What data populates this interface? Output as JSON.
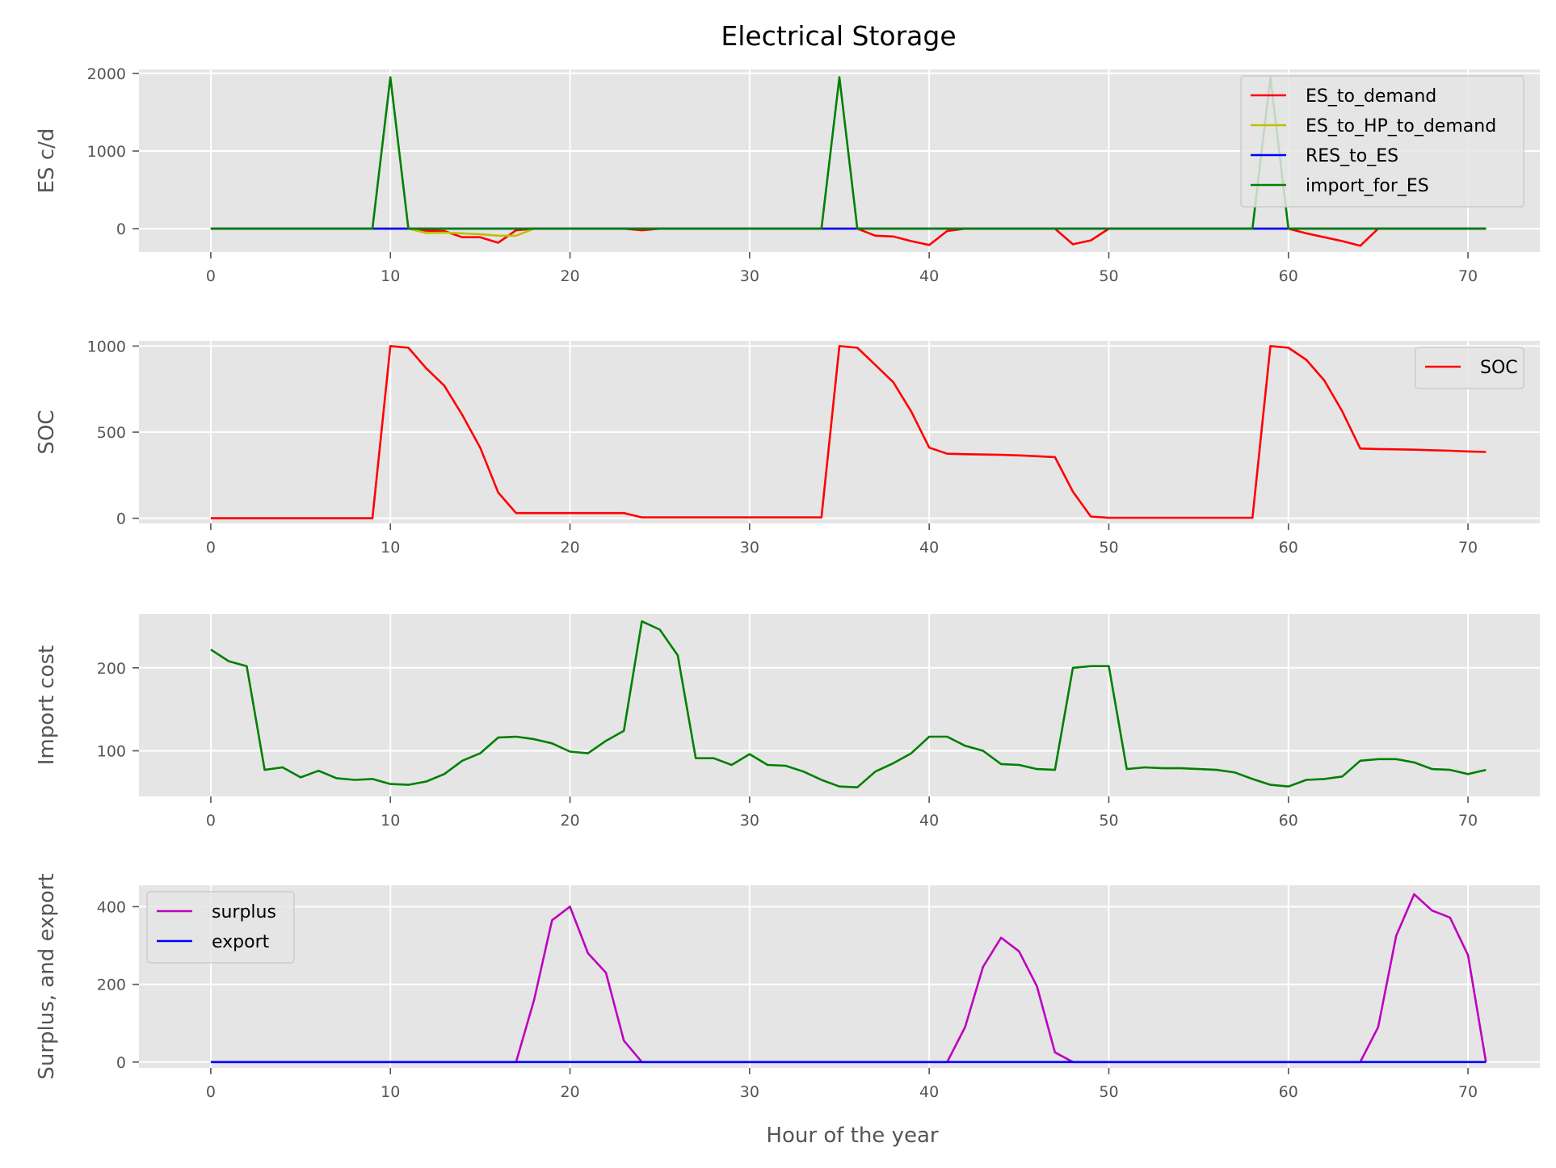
{
  "chart_data": [
    {
      "type": "line",
      "title": "Electrical Storage",
      "xlabel": "",
      "ylabel": "ES c/d",
      "xlim": [
        -4,
        74
      ],
      "ylim": [
        -300,
        2050
      ],
      "xticks": [
        0,
        10,
        20,
        30,
        40,
        50,
        60,
        70
      ],
      "yticks": [
        0,
        1000,
        2000
      ],
      "grid": true,
      "legend": "top-right",
      "series": [
        {
          "name": "ES_to_demand",
          "color": "#ff0000",
          "x_start": 0,
          "values": [
            0,
            0,
            0,
            0,
            0,
            0,
            0,
            0,
            0,
            0,
            0,
            0,
            -25,
            -30,
            -110,
            -110,
            -180,
            -20,
            0,
            0,
            0,
            0,
            0,
            0,
            -20,
            0,
            0,
            0,
            0,
            0,
            0,
            0,
            0,
            0,
            0,
            0,
            0,
            -90,
            -100,
            -160,
            -210,
            -30,
            0,
            0,
            0,
            0,
            0,
            0,
            -200,
            -150,
            0,
            0,
            0,
            0,
            0,
            0,
            0,
            0,
            0,
            0,
            0,
            -60,
            -110,
            -160,
            -220,
            0,
            0,
            0,
            0,
            0,
            0,
            0
          ]
        },
        {
          "name": "ES_to_HP_to_demand",
          "color": "#bfbf00",
          "x_start": 0,
          "values": [
            0,
            0,
            0,
            0,
            0,
            0,
            0,
            0,
            0,
            0,
            0,
            0,
            -55,
            -50,
            -60,
            -70,
            -90,
            -90,
            0,
            0,
            0,
            0,
            0,
            0,
            0,
            0,
            0,
            0,
            0,
            0,
            0,
            0,
            0,
            0,
            0,
            0,
            0,
            0,
            0,
            0,
            0,
            0,
            0,
            0,
            0,
            0,
            0,
            0,
            0,
            0,
            0,
            0,
            0,
            0,
            0,
            0,
            0,
            0,
            0,
            0,
            0,
            0,
            0,
            0,
            0,
            0,
            0,
            0,
            0,
            0,
            0,
            0
          ]
        },
        {
          "name": "RES_to_ES",
          "color": "#0000ff",
          "x_start": 0,
          "values": [
            0,
            0,
            0,
            0,
            0,
            0,
            0,
            0,
            0,
            0,
            0,
            0,
            0,
            0,
            0,
            0,
            0,
            0,
            0,
            0,
            0,
            0,
            0,
            0,
            0,
            0,
            0,
            0,
            0,
            0,
            0,
            0,
            0,
            0,
            0,
            0,
            0,
            0,
            0,
            0,
            0,
            0,
            0,
            0,
            0,
            0,
            0,
            0,
            0,
            0,
            0,
            0,
            0,
            0,
            0,
            0,
            0,
            0,
            0,
            0,
            0,
            0,
            0,
            0,
            0,
            0,
            0,
            0,
            0,
            0,
            0,
            0
          ]
        },
        {
          "name": "import_for_ES",
          "color": "#008000",
          "x_start": 0,
          "values": [
            0,
            0,
            0,
            0,
            0,
            0,
            0,
            0,
            0,
            0,
            1950,
            0,
            0,
            0,
            0,
            0,
            0,
            0,
            0,
            0,
            0,
            0,
            0,
            0,
            0,
            0,
            0,
            0,
            0,
            0,
            0,
            0,
            0,
            0,
            0,
            1950,
            0,
            0,
            0,
            0,
            0,
            0,
            0,
            0,
            0,
            0,
            0,
            0,
            0,
            0,
            0,
            0,
            0,
            0,
            0,
            0,
            0,
            0,
            0,
            1950,
            0,
            0,
            0,
            0,
            0,
            0,
            0,
            0,
            0,
            0,
            0,
            0
          ]
        }
      ]
    },
    {
      "type": "line",
      "title": "",
      "xlabel": "",
      "ylabel": "SOC",
      "xlim": [
        -4,
        74
      ],
      "ylim": [
        -30,
        1030
      ],
      "xticks": [
        0,
        10,
        20,
        30,
        40,
        50,
        60,
        70
      ],
      "yticks": [
        0,
        500,
        1000
      ],
      "grid": true,
      "legend": "top-right",
      "series": [
        {
          "name": "SOC",
          "color": "#ff0000",
          "x_start": 0,
          "values": [
            0,
            0,
            0,
            0,
            0,
            0,
            0,
            0,
            0,
            0,
            1000,
            990,
            870,
            770,
            600,
            410,
            150,
            30,
            30,
            30,
            30,
            30,
            30,
            30,
            5,
            5,
            5,
            5,
            5,
            5,
            5,
            5,
            5,
            5,
            5,
            1000,
            990,
            890,
            790,
            620,
            410,
            375,
            372,
            370,
            368,
            365,
            360,
            355,
            155,
            10,
            3,
            3,
            3,
            3,
            3,
            3,
            3,
            3,
            3,
            1000,
            990,
            920,
            800,
            620,
            405,
            402,
            400,
            398,
            395,
            392,
            388,
            385
          ]
        }
      ]
    },
    {
      "type": "line",
      "title": "",
      "xlabel": "",
      "ylabel": "Import cost",
      "xlim": [
        -4,
        74
      ],
      "ylim": [
        45,
        265
      ],
      "xticks": [
        0,
        10,
        20,
        30,
        40,
        50,
        60,
        70
      ],
      "yticks": [
        100,
        200
      ],
      "grid": true,
      "legend": "",
      "series": [
        {
          "name": "",
          "color": "#008000",
          "x_start": 0,
          "values": [
            222,
            208,
            202,
            77,
            80,
            68,
            76,
            67,
            65,
            66,
            60,
            59,
            63,
            72,
            88,
            97,
            116,
            117,
            114,
            109,
            99,
            97,
            112,
            124,
            256,
            246,
            215,
            91,
            91,
            83,
            96,
            83,
            82,
            75,
            65,
            57,
            56,
            75,
            85,
            97,
            117,
            117,
            106,
            100,
            84,
            83,
            78,
            77,
            200,
            202,
            202,
            78,
            80,
            79,
            79,
            78,
            77,
            74,
            66,
            59,
            57,
            65,
            66,
            69,
            88,
            90,
            90,
            86,
            78,
            77,
            72,
            77
          ]
        }
      ]
    },
    {
      "type": "line",
      "title": "",
      "xlabel": "Hour of the year",
      "ylabel": "Surplus, and export",
      "xlim": [
        -4,
        74
      ],
      "ylim": [
        -15,
        455
      ],
      "xticks": [
        0,
        10,
        20,
        30,
        40,
        50,
        60,
        70
      ],
      "yticks": [
        0,
        200,
        400
      ],
      "grid": true,
      "legend": "top-left",
      "series": [
        {
          "name": "surplus",
          "color": "#bf00bf",
          "x_start": 0,
          "values": [
            0,
            0,
            0,
            0,
            0,
            0,
            0,
            0,
            0,
            0,
            0,
            0,
            0,
            0,
            0,
            0,
            0,
            0,
            160,
            365,
            400,
            280,
            230,
            55,
            0,
            0,
            0,
            0,
            0,
            0,
            0,
            0,
            0,
            0,
            0,
            0,
            0,
            0,
            0,
            0,
            0,
            0,
            90,
            245,
            320,
            285,
            195,
            25,
            0,
            0,
            0,
            0,
            0,
            0,
            0,
            0,
            0,
            0,
            0,
            0,
            0,
            0,
            0,
            0,
            0,
            90,
            325,
            432,
            390,
            372,
            275,
            0
          ]
        },
        {
          "name": "export",
          "color": "#0000ff",
          "x_start": 0,
          "values": [
            0,
            0,
            0,
            0,
            0,
            0,
            0,
            0,
            0,
            0,
            0,
            0,
            0,
            0,
            0,
            0,
            0,
            0,
            0,
            0,
            0,
            0,
            0,
            0,
            0,
            0,
            0,
            0,
            0,
            0,
            0,
            0,
            0,
            0,
            0,
            0,
            0,
            0,
            0,
            0,
            0,
            0,
            0,
            0,
            0,
            0,
            0,
            0,
            0,
            0,
            0,
            0,
            0,
            0,
            0,
            0,
            0,
            0,
            0,
            0,
            0,
            0,
            0,
            0,
            0,
            0,
            0,
            0,
            0,
            0,
            0,
            0
          ]
        }
      ]
    }
  ]
}
